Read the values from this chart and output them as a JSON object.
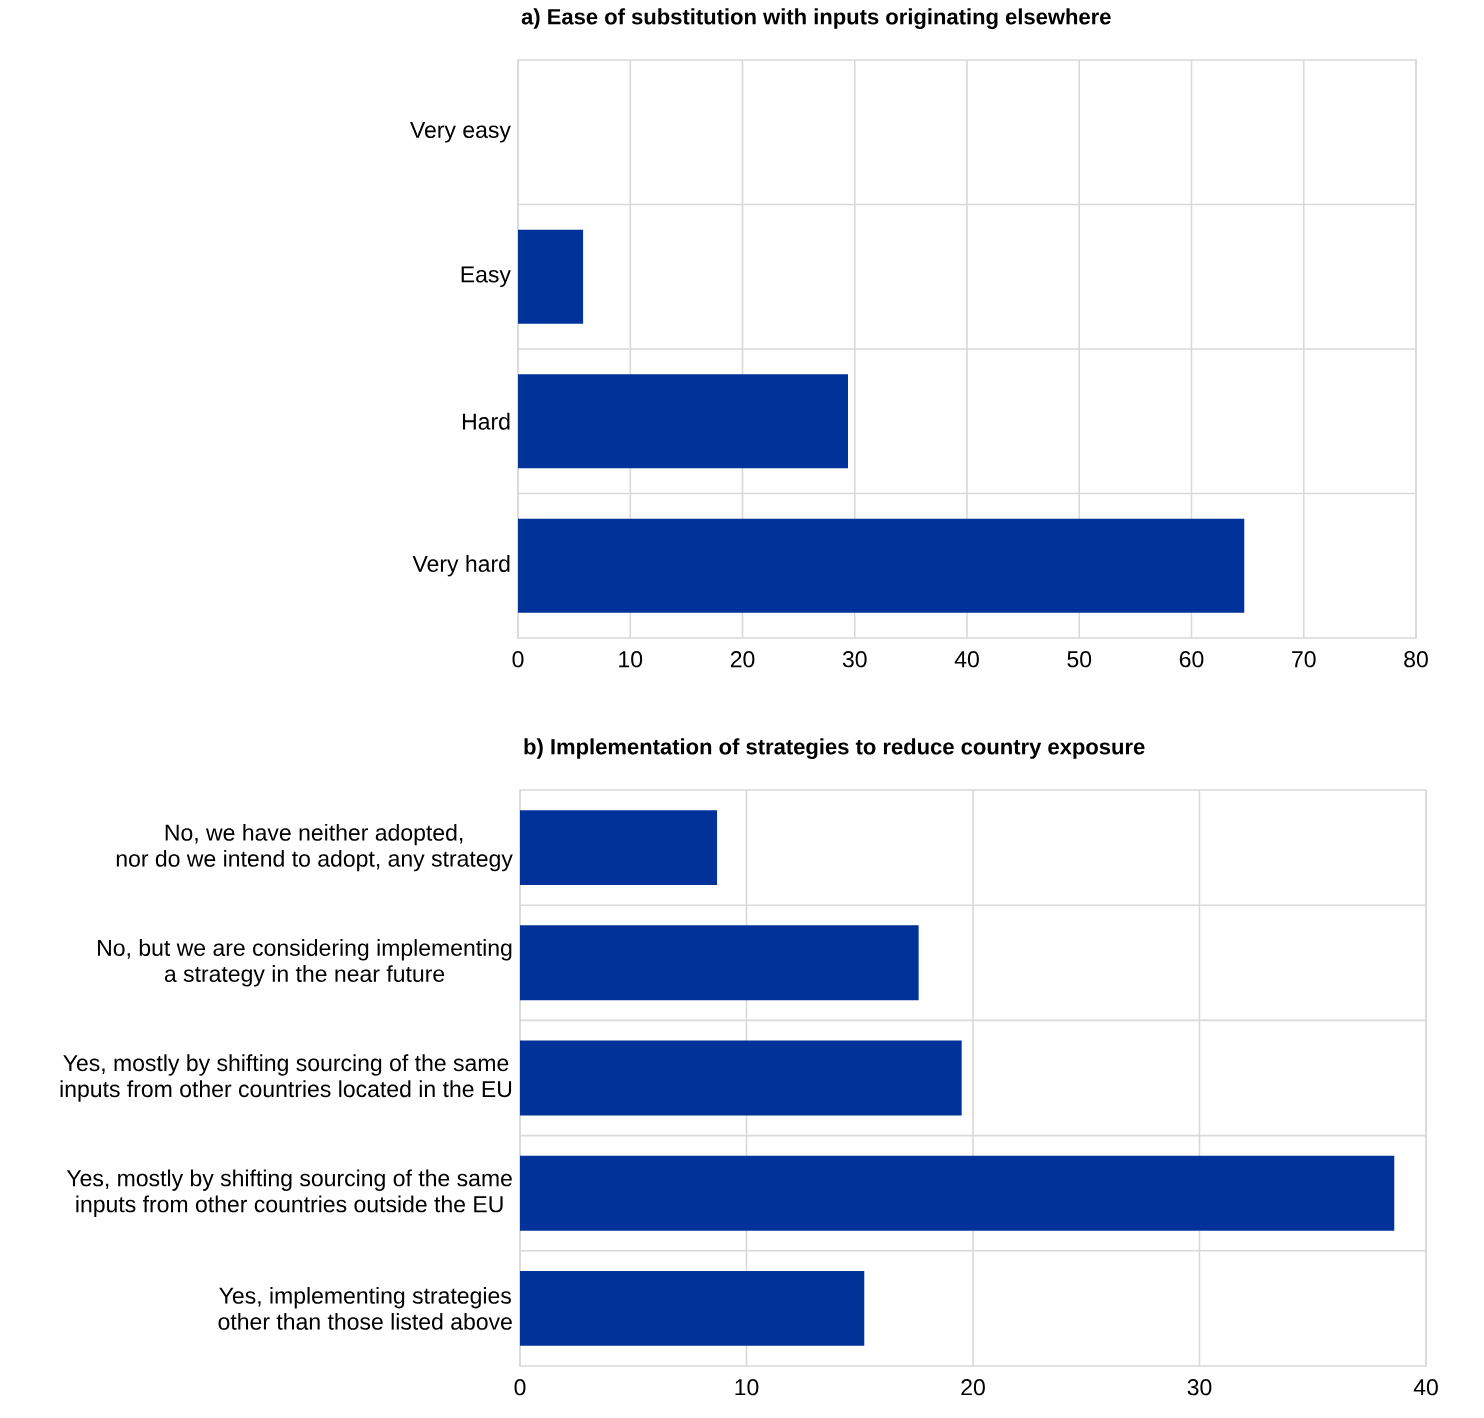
{
  "chart_data": [
    {
      "type": "bar",
      "orientation": "horizontal",
      "title": "a) Ease of substitution with inputs originating elsewhere",
      "categories": [
        "Very easy",
        "Easy",
        "Hard",
        "Very hard"
      ],
      "values": [
        0,
        5.8,
        29.4,
        64.7
      ],
      "color": "#003299",
      "xlim": [
        0,
        80
      ],
      "xticks": [
        0,
        10,
        20,
        30,
        40,
        50,
        60,
        70,
        80
      ],
      "grid": true
    },
    {
      "type": "bar",
      "orientation": "horizontal",
      "title": "b) Implementation of strategies to reduce country exposure",
      "categories": [
        "No, we have neither adopted,\nnor do we intend to adopt, any strategy",
        "No, but we are considering implementing\na strategy in the near future",
        "Yes, mostly by shifting sourcing of the same\ninputs from other countries located in the EU",
        "Yes, mostly by shifting sourcing of the same\ninputs from other countries outside the EU",
        "Yes, implementing strategies\nother than those listed above"
      ],
      "values": [
        8.7,
        17.6,
        19.5,
        38.6,
        15.2
      ],
      "color": "#003299",
      "xlim": [
        0,
        40
      ],
      "xticks": [
        0,
        10,
        20,
        30,
        40
      ],
      "grid": true
    }
  ]
}
